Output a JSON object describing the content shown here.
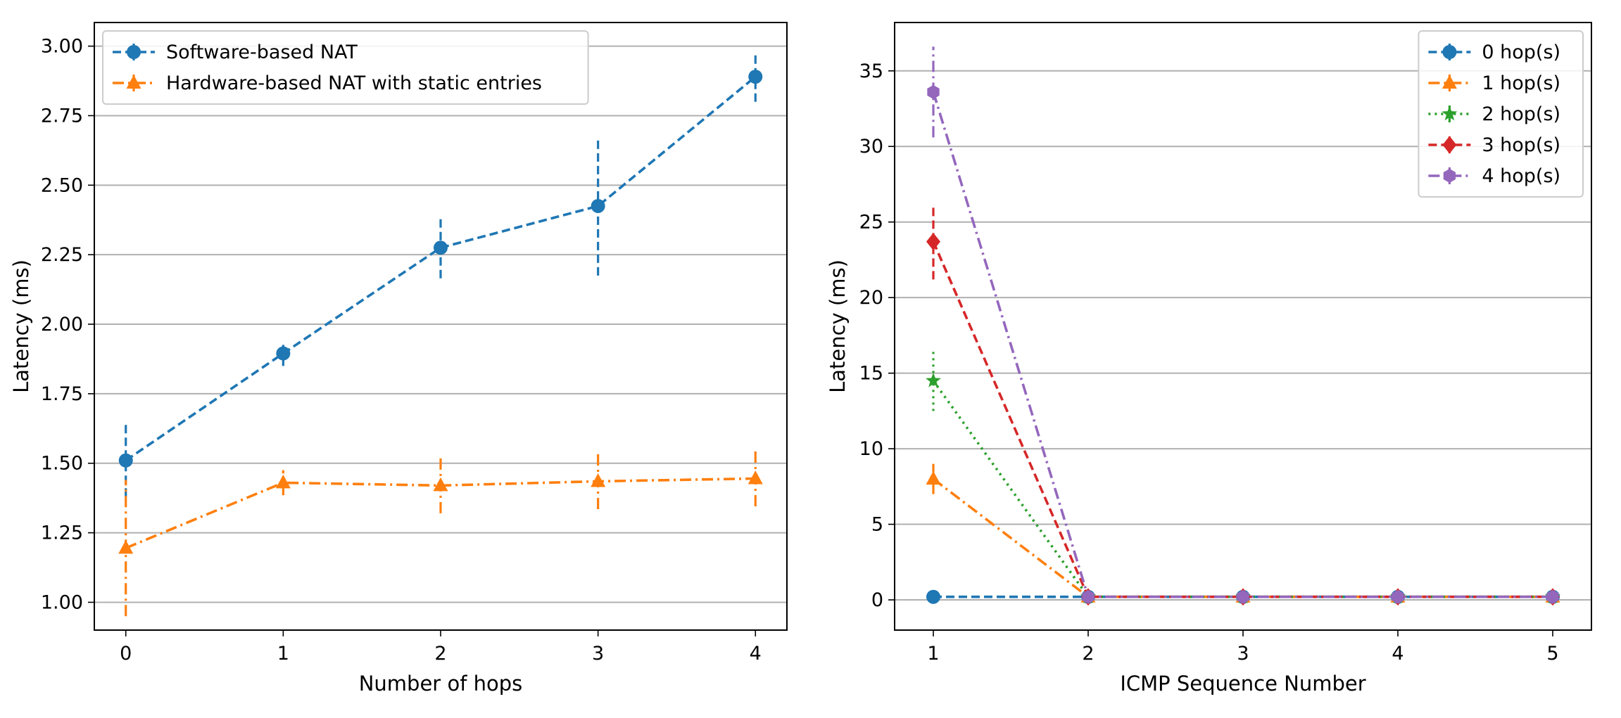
{
  "chart_data": [
    {
      "type": "line",
      "xlabel": "Number of hops",
      "ylabel": "Latency (ms)",
      "xlim": [
        -0.2,
        4.2
      ],
      "ylim": [
        0.9,
        3.085
      ],
      "xticks": [
        0,
        1,
        2,
        3,
        4
      ],
      "yticks": [
        1.0,
        1.25,
        1.5,
        1.75,
        2.0,
        2.25,
        2.5,
        2.75,
        3.0
      ],
      "ytick_labels": [
        "1.00",
        "1.25",
        "1.50",
        "1.75",
        "2.00",
        "2.25",
        "2.50",
        "2.75",
        "3.00"
      ],
      "grid": "horizontal",
      "legend_position": "top-left",
      "series": [
        {
          "name": "Software-based NAT",
          "color": "#1f77b4",
          "marker": "circle",
          "linestyle": "dashed",
          "x": [
            0,
            1,
            2,
            3,
            4
          ],
          "y": [
            1.51,
            1.895,
            2.275,
            2.425,
            2.89
          ],
          "yerr": [
            0.13,
            0.045,
            0.11,
            0.25,
            0.09
          ]
        },
        {
          "name": "Hardware-based NAT with static entries",
          "color": "#ff7f0e",
          "marker": "triangle",
          "linestyle": "dashdot",
          "x": [
            0,
            1,
            2,
            3,
            4
          ],
          "y": [
            1.195,
            1.43,
            1.42,
            1.435,
            1.445
          ],
          "yerr": [
            0.245,
            0.045,
            0.1,
            0.1,
            0.1
          ]
        }
      ]
    },
    {
      "type": "line",
      "xlabel": "ICMP Sequence Number",
      "ylabel": "Latency (ms)",
      "xlim": [
        0.75,
        5.25
      ],
      "ylim": [
        -2.0,
        38.2
      ],
      "xticks": [
        1,
        2,
        3,
        4,
        5
      ],
      "yticks": [
        0,
        5,
        10,
        15,
        20,
        25,
        30,
        35
      ],
      "ytick_labels": [
        "0",
        "5",
        "10",
        "15",
        "20",
        "25",
        "30",
        "35"
      ],
      "grid": "horizontal",
      "legend_position": "top-right",
      "series": [
        {
          "name": "0 hop(s)",
          "color": "#1f77b4",
          "marker": "circle",
          "linestyle": "dashed",
          "x": [
            1,
            2,
            3,
            4,
            5
          ],
          "y": [
            0.2,
            0.2,
            0.2,
            0.2,
            0.2
          ],
          "yerr": [
            0.1,
            0.05,
            0.05,
            0.05,
            0.05
          ]
        },
        {
          "name": "1 hop(s)",
          "color": "#ff7f0e",
          "marker": "triangle",
          "linestyle": "dashdot",
          "x": [
            1,
            2,
            3,
            4,
            5
          ],
          "y": [
            8.0,
            0.2,
            0.2,
            0.2,
            0.2
          ],
          "yerr": [
            1.0,
            0.05,
            0.05,
            0.05,
            0.05
          ]
        },
        {
          "name": "2 hop(s)",
          "color": "#2ca02c",
          "marker": "star",
          "linestyle": "dotted",
          "x": [
            1,
            2,
            3,
            4,
            5
          ],
          "y": [
            14.5,
            0.2,
            0.2,
            0.2,
            0.2
          ],
          "yerr": [
            2.0,
            0.05,
            0.05,
            0.05,
            0.05
          ]
        },
        {
          "name": "3 hop(s)",
          "color": "#d62728",
          "marker": "diamond",
          "linestyle": "dashed",
          "x": [
            1,
            2,
            3,
            4,
            5
          ],
          "y": [
            23.7,
            0.2,
            0.2,
            0.2,
            0.2
          ],
          "yerr": [
            2.5,
            0.05,
            0.05,
            0.05,
            0.05
          ]
        },
        {
          "name": "4 hop(s)",
          "color": "#9467bd",
          "marker": "hexagon",
          "linestyle": "dashdot",
          "x": [
            1,
            2,
            3,
            4,
            5
          ],
          "y": [
            33.6,
            0.2,
            0.2,
            0.2,
            0.2
          ],
          "yerr": [
            3.0,
            0.05,
            0.05,
            0.05,
            0.05
          ]
        }
      ]
    }
  ]
}
